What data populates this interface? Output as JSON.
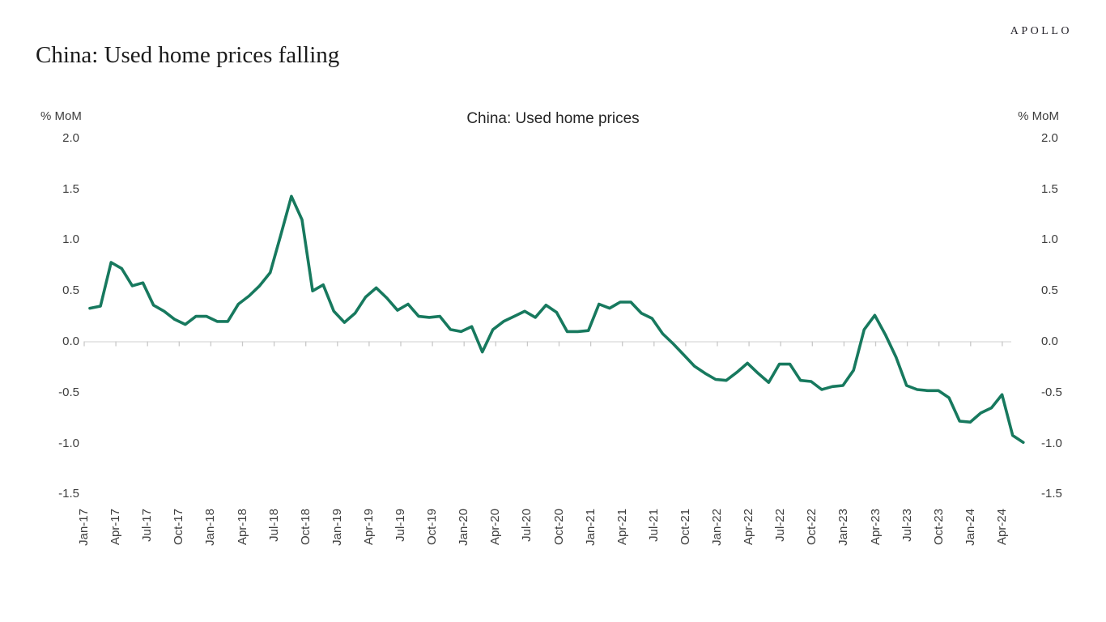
{
  "brand": {
    "logo_text": "APOLLO"
  },
  "page_title": "China: Used home prices falling",
  "chart": {
    "title": "China: Used home prices",
    "left_axis_unit": "% MoM",
    "right_axis_unit": "% MoM",
    "line_color": "#17795E",
    "zero_line_color": "#d9d9d9",
    "tick_color": "#c8c8c8"
  },
  "chart_data": {
    "type": "line",
    "title": "China: Used home prices",
    "ylabel": "% MoM",
    "y2label": "% MoM",
    "ylim": [
      -1.5,
      2.0
    ],
    "yticks": [
      2.0,
      1.5,
      1.0,
      0.5,
      0.0,
      -0.5,
      -1.0,
      -1.5
    ],
    "ytick_labels": [
      "2.0",
      "1.5",
      "1.0",
      "0.5",
      "0.0",
      "-0.5",
      "-1.0",
      "-1.5"
    ],
    "grid": "zero-line-only",
    "legend": "none",
    "xtick_labels": [
      "Jan-17",
      "Apr-17",
      "Jul-17",
      "Oct-17",
      "Jan-18",
      "Apr-18",
      "Jul-18",
      "Oct-18",
      "Jan-19",
      "Apr-19",
      "Jul-19",
      "Oct-19",
      "Jan-20",
      "Apr-20",
      "Jul-20",
      "Oct-20",
      "Jan-21",
      "Apr-21",
      "Jul-21",
      "Oct-21",
      "Jan-22",
      "Apr-22",
      "Jul-22",
      "Oct-22",
      "Jan-23",
      "Apr-23",
      "Jul-23",
      "Oct-23",
      "Jan-24",
      "Apr-24"
    ],
    "x": [
      "Jan-17",
      "Feb-17",
      "Mar-17",
      "Apr-17",
      "May-17",
      "Jun-17",
      "Jul-17",
      "Aug-17",
      "Sep-17",
      "Oct-17",
      "Nov-17",
      "Dec-17",
      "Jan-18",
      "Feb-18",
      "Mar-18",
      "Apr-18",
      "May-18",
      "Jun-18",
      "Jul-18",
      "Aug-18",
      "Sep-18",
      "Oct-18",
      "Nov-18",
      "Dec-18",
      "Jan-19",
      "Feb-19",
      "Mar-19",
      "Apr-19",
      "May-19",
      "Jun-19",
      "Jul-19",
      "Aug-19",
      "Sep-19",
      "Oct-19",
      "Nov-19",
      "Dec-19",
      "Jan-20",
      "Feb-20",
      "Mar-20",
      "Apr-20",
      "May-20",
      "Jun-20",
      "Jul-20",
      "Aug-20",
      "Sep-20",
      "Oct-20",
      "Nov-20",
      "Dec-20",
      "Jan-21",
      "Feb-21",
      "Mar-21",
      "Apr-21",
      "May-21",
      "Jun-21",
      "Jul-21",
      "Aug-21",
      "Sep-21",
      "Oct-21",
      "Nov-21",
      "Dec-21",
      "Jan-22",
      "Feb-22",
      "Mar-22",
      "Apr-22",
      "May-22",
      "Jun-22",
      "Jul-22",
      "Aug-22",
      "Sep-22",
      "Oct-22",
      "Nov-22",
      "Dec-22",
      "Jan-23",
      "Feb-23",
      "Mar-23",
      "Apr-23",
      "May-23",
      "Jun-23",
      "Jul-23",
      "Aug-23",
      "Sep-23",
      "Oct-23",
      "Nov-23",
      "Dec-23",
      "Jan-24",
      "Feb-24",
      "Mar-24",
      "Apr-24",
      "May-24"
    ],
    "series": [
      {
        "name": "China used home prices",
        "unit": "% MoM",
        "values": [
          0.33,
          0.35,
          0.78,
          0.72,
          0.55,
          0.58,
          0.36,
          0.3,
          0.22,
          0.17,
          0.25,
          0.25,
          0.2,
          0.2,
          0.37,
          0.45,
          0.55,
          0.68,
          1.05,
          1.43,
          1.2,
          0.5,
          0.56,
          0.3,
          0.19,
          0.28,
          0.44,
          0.53,
          0.43,
          0.31,
          0.37,
          0.25,
          0.24,
          0.25,
          0.12,
          0.1,
          0.15,
          -0.1,
          0.12,
          0.2,
          0.25,
          0.3,
          0.24,
          0.36,
          0.29,
          0.1,
          0.1,
          0.11,
          0.37,
          0.33,
          0.39,
          0.39,
          0.28,
          0.23,
          0.08,
          -0.02,
          -0.13,
          -0.24,
          -0.31,
          -0.37,
          -0.38,
          -0.3,
          -0.21,
          -0.31,
          -0.4,
          -0.22,
          -0.22,
          -0.38,
          -0.39,
          -0.47,
          -0.44,
          -0.43,
          -0.28,
          0.12,
          0.26,
          0.07,
          -0.15,
          -0.43,
          -0.47,
          -0.48,
          -0.48,
          -0.55,
          -0.78,
          -0.79,
          -0.7,
          -0.65,
          -0.52,
          -0.92,
          -0.99
        ]
      }
    ]
  }
}
